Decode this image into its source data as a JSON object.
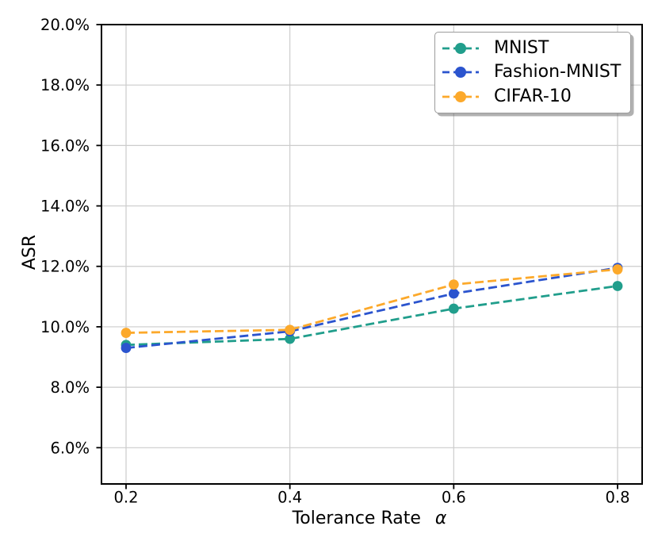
{
  "figure": {
    "background": "#ffffff"
  },
  "chart_data": {
    "type": "line",
    "title": "",
    "xlabel": "Tolerance Rate",
    "xlabel_symbol": "α",
    "ylabel": "ASR",
    "x": [
      0.2,
      0.4,
      0.6,
      0.8
    ],
    "xtick_labels": [
      "0.2",
      "0.4",
      "0.6",
      "0.8"
    ],
    "ytick_values": [
      6,
      8,
      10,
      12,
      14,
      16,
      18,
      20
    ],
    "ytick_labels": [
      "6.0%",
      "8.0%",
      "10.0%",
      "12.0%",
      "14.0%",
      "16.0%",
      "18.0%",
      "20.0%"
    ],
    "xlim": [
      0.17,
      0.83
    ],
    "ylim": [
      4.8,
      20.0
    ],
    "grid": true,
    "line_style": "dashed",
    "marker": "circle",
    "legend_position": "upper right",
    "series": [
      {
        "name": "MNIST",
        "color": "#219e8c",
        "values": [
          9.4,
          9.6,
          10.6,
          11.35
        ]
      },
      {
        "name": "Fashion-MNIST",
        "color": "#2b54ce",
        "values": [
          9.3,
          9.85,
          11.1,
          11.95
        ]
      },
      {
        "name": "CIFAR-10",
        "color": "#fca92b",
        "values": [
          9.8,
          9.9,
          11.4,
          11.9
        ]
      }
    ]
  },
  "colors": {
    "grid": "#cccccc",
    "axis": "#000000",
    "tick_label": "#000000",
    "legend_border": "#9c9c9c"
  }
}
